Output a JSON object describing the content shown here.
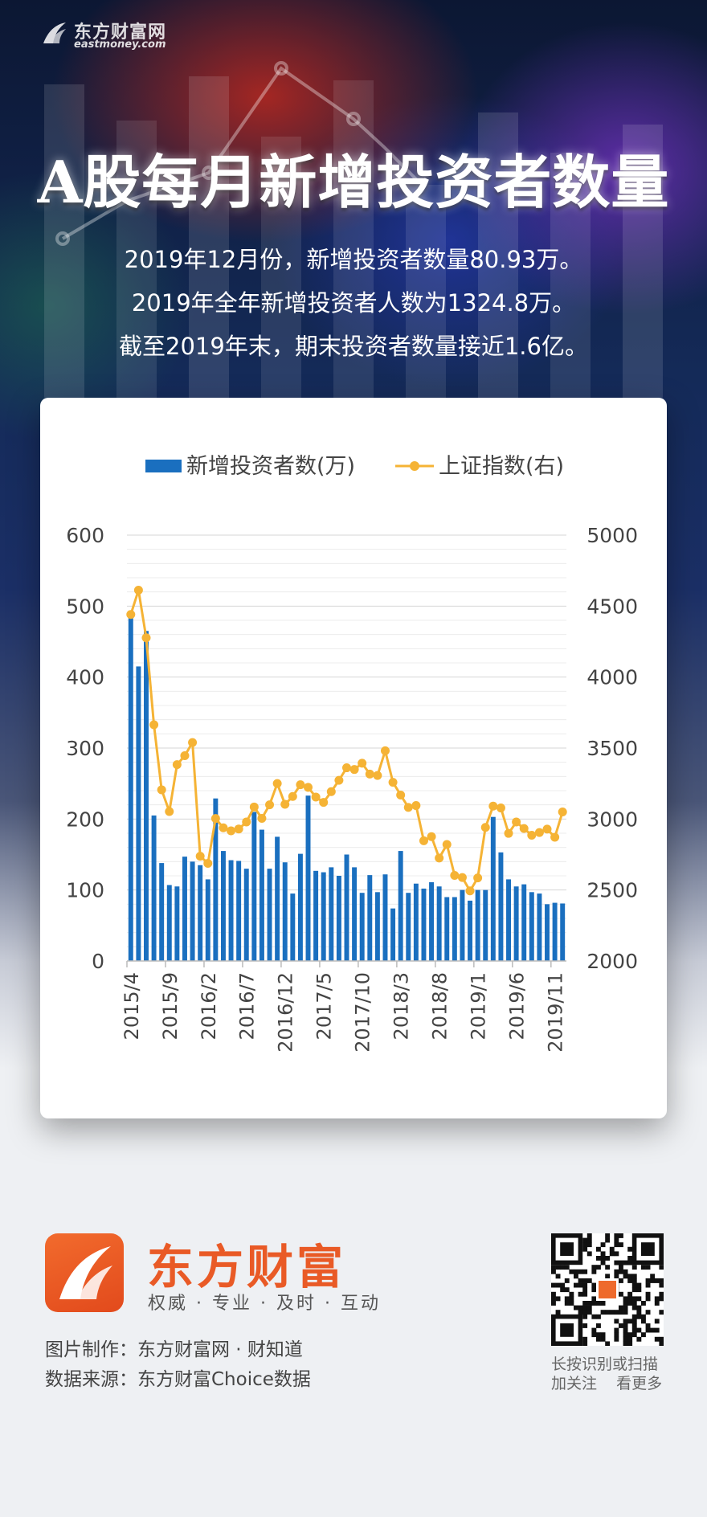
{
  "header": {
    "logo_cn": "东方财富网",
    "logo_en": "eastmoney.com",
    "title": "A股每月新增投资者数量",
    "subtitle_lines": [
      "2019年12月份，新增投资者数量80.93万。",
      "2019年全年新增投资者人数为1324.8万。",
      "截至2019年末，期末投资者数量接近1.6亿。"
    ]
  },
  "chart_data": {
    "type": "bar+line",
    "legend": [
      "新增投资者数(万)",
      "上证指数(右)"
    ],
    "legend_position": "top",
    "grid": true,
    "y_left": {
      "ticks": [
        "0",
        "100",
        "200",
        "300",
        "400",
        "500",
        "600"
      ],
      "range": [
        0,
        600
      ]
    },
    "y_right": {
      "ticks": [
        "2000",
        "2500",
        "3000",
        "3500",
        "4000",
        "4500",
        "5000"
      ],
      "range": [
        2000,
        5000
      ]
    },
    "x_tick_labels": [
      "2015/4",
      "2015/9",
      "2016/2",
      "2016/7",
      "2016/12",
      "2017/5",
      "2017/10",
      "2018/3",
      "2018/8",
      "2019/1",
      "2019/6",
      "2019/11"
    ],
    "x_tick_every": 5,
    "months": [
      "2015/4",
      "2015/5",
      "2015/6",
      "2015/7",
      "2015/8",
      "2015/9",
      "2015/10",
      "2015/11",
      "2015/12",
      "2016/1",
      "2016/2",
      "2016/3",
      "2016/4",
      "2016/5",
      "2016/6",
      "2016/7",
      "2016/8",
      "2016/9",
      "2016/10",
      "2016/11",
      "2016/12",
      "2017/1",
      "2017/2",
      "2017/3",
      "2017/4",
      "2017/5",
      "2017/6",
      "2017/7",
      "2017/8",
      "2017/9",
      "2017/10",
      "2017/11",
      "2017/12",
      "2018/1",
      "2018/2",
      "2018/3",
      "2018/4",
      "2018/5",
      "2018/6",
      "2018/7",
      "2018/8",
      "2018/9",
      "2018/10",
      "2018/11",
      "2018/12",
      "2019/1",
      "2019/2",
      "2019/3",
      "2019/4",
      "2019/5",
      "2019/6",
      "2019/7",
      "2019/8",
      "2019/9",
      "2019/10",
      "2019/11",
      "2019/12"
    ],
    "series": [
      {
        "name": "新增投资者数(万)",
        "type": "bar",
        "axis": "left",
        "color": "#1a6fbf",
        "values": [
          485,
          415,
          465,
          205,
          138,
          107,
          105,
          147,
          140,
          135,
          115,
          229,
          155,
          142,
          141,
          130,
          210,
          185,
          130,
          175,
          139,
          95,
          151,
          233,
          127,
          125,
          132,
          120,
          150,
          132,
          96,
          121,
          97,
          122,
          74,
          155,
          96,
          109,
          102,
          111,
          105,
          90,
          90,
          100,
          85,
          100,
          100,
          203,
          153,
          115,
          105,
          108,
          97,
          95,
          80,
          82,
          81
        ]
      },
      {
        "name": "上证指数(右)",
        "type": "line",
        "axis": "right",
        "color": "#f5b335",
        "values": [
          4441,
          4612,
          4277,
          3664,
          3206,
          3053,
          3383,
          3446,
          3539,
          2738,
          2688,
          3004,
          2938,
          2917,
          2930,
          2979,
          3085,
          3005,
          3100,
          3250,
          3104,
          3159,
          3242,
          3223,
          3155,
          3117,
          3193,
          3273,
          3361,
          3349,
          3393,
          3317,
          3307,
          3481,
          3259,
          3169,
          3082,
          3095,
          2847,
          2876,
          2725,
          2821,
          2603,
          2588,
          2494,
          2585,
          2941,
          3091,
          3078,
          2899,
          2979,
          2933,
          2886,
          2905,
          2929,
          2872,
          3050
        ]
      }
    ]
  },
  "footer": {
    "brand": "东方财富",
    "slogan": "权威 · 专业 · 及时 · 互动",
    "credit_lines": [
      "图片制作：东方财富网 · 财知道",
      "数据来源：东方财富Choice数据"
    ],
    "qr_caption_lines": [
      "长按识别或扫描",
      "加关注    看更多"
    ]
  }
}
